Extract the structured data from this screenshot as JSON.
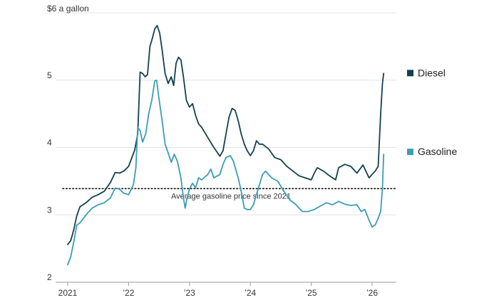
{
  "chart_data": {
    "type": "line",
    "title": "",
    "xlabel": "",
    "ylabel": "",
    "ylim": [
      2,
      6
    ],
    "xlim": [
      2021.0,
      2026.3
    ],
    "y_ticks": [
      {
        "value": 6,
        "label": "$6 a gallon"
      },
      {
        "value": 5,
        "label": "5"
      },
      {
        "value": 4,
        "label": "4"
      },
      {
        "value": 3,
        "label": "3"
      },
      {
        "value": 2,
        "label": "2"
      }
    ],
    "x_ticks": [
      {
        "value": 2021,
        "label": "2021"
      },
      {
        "value": 2022,
        "label": "’22"
      },
      {
        "value": 2023,
        "label": "’23"
      },
      {
        "value": 2024,
        "label": "’24"
      },
      {
        "value": 2025,
        "label": "’25"
      },
      {
        "value": 2026,
        "label": "’26"
      }
    ],
    "reference_line": {
      "value": 3.39,
      "label": "Average gasoline price since 2021"
    },
    "series": [
      {
        "name": "Diesel",
        "color": "#12404f",
        "points": [
          [
            2021.0,
            2.56
          ],
          [
            2021.05,
            2.62
          ],
          [
            2021.1,
            2.78
          ],
          [
            2021.15,
            2.99
          ],
          [
            2021.2,
            3.12
          ],
          [
            2021.3,
            3.18
          ],
          [
            2021.4,
            3.26
          ],
          [
            2021.5,
            3.3
          ],
          [
            2021.6,
            3.35
          ],
          [
            2021.7,
            3.48
          ],
          [
            2021.78,
            3.63
          ],
          [
            2021.85,
            3.62
          ],
          [
            2021.92,
            3.65
          ],
          [
            2022.0,
            3.72
          ],
          [
            2022.1,
            3.96
          ],
          [
            2022.15,
            4.2
          ],
          [
            2022.19,
            5.12
          ],
          [
            2022.23,
            5.1
          ],
          [
            2022.27,
            5.05
          ],
          [
            2022.31,
            5.08
          ],
          [
            2022.35,
            5.5
          ],
          [
            2022.39,
            5.62
          ],
          [
            2022.43,
            5.76
          ],
          [
            2022.47,
            5.81
          ],
          [
            2022.51,
            5.7
          ],
          [
            2022.55,
            5.45
          ],
          [
            2022.6,
            5.1
          ],
          [
            2022.65,
            4.95
          ],
          [
            2022.7,
            5.05
          ],
          [
            2022.74,
            4.92
          ],
          [
            2022.78,
            5.25
          ],
          [
            2022.82,
            5.34
          ],
          [
            2022.86,
            5.3
          ],
          [
            2022.9,
            5.05
          ],
          [
            2022.95,
            4.7
          ],
          [
            2023.0,
            4.6
          ],
          [
            2023.05,
            4.65
          ],
          [
            2023.1,
            4.48
          ],
          [
            2023.15,
            4.35
          ],
          [
            2023.2,
            4.3
          ],
          [
            2023.3,
            4.15
          ],
          [
            2023.4,
            4.0
          ],
          [
            2023.5,
            3.87
          ],
          [
            2023.55,
            3.95
          ],
          [
            2023.6,
            4.2
          ],
          [
            2023.65,
            4.45
          ],
          [
            2023.7,
            4.58
          ],
          [
            2023.75,
            4.55
          ],
          [
            2023.8,
            4.4
          ],
          [
            2023.85,
            4.2
          ],
          [
            2023.9,
            4.05
          ],
          [
            2023.95,
            3.95
          ],
          [
            2024.0,
            3.88
          ],
          [
            2024.05,
            3.95
          ],
          [
            2024.1,
            4.1
          ],
          [
            2024.15,
            4.05
          ],
          [
            2024.2,
            4.05
          ],
          [
            2024.3,
            3.98
          ],
          [
            2024.4,
            3.85
          ],
          [
            2024.5,
            3.82
          ],
          [
            2024.6,
            3.72
          ],
          [
            2024.7,
            3.65
          ],
          [
            2024.8,
            3.58
          ],
          [
            2024.9,
            3.55
          ],
          [
            2025.0,
            3.52
          ],
          [
            2025.05,
            3.62
          ],
          [
            2025.1,
            3.7
          ],
          [
            2025.2,
            3.65
          ],
          [
            2025.3,
            3.58
          ],
          [
            2025.4,
            3.52
          ],
          [
            2025.45,
            3.7
          ],
          [
            2025.55,
            3.75
          ],
          [
            2025.65,
            3.72
          ],
          [
            2025.75,
            3.62
          ],
          [
            2025.85,
            3.74
          ],
          [
            2025.95,
            3.55
          ],
          [
            2026.05,
            3.65
          ],
          [
            2026.1,
            3.72
          ],
          [
            2026.14,
            4.5
          ],
          [
            2026.17,
            4.95
          ],
          [
            2026.19,
            5.1
          ]
        ]
      },
      {
        "name": "Gasoline",
        "color": "#3a9db5",
        "points": [
          [
            2021.0,
            2.26
          ],
          [
            2021.05,
            2.38
          ],
          [
            2021.1,
            2.6
          ],
          [
            2021.15,
            2.85
          ],
          [
            2021.2,
            2.88
          ],
          [
            2021.3,
            3.0
          ],
          [
            2021.4,
            3.1
          ],
          [
            2021.5,
            3.15
          ],
          [
            2021.6,
            3.18
          ],
          [
            2021.7,
            3.25
          ],
          [
            2021.78,
            3.4
          ],
          [
            2021.85,
            3.38
          ],
          [
            2021.92,
            3.32
          ],
          [
            2022.0,
            3.3
          ],
          [
            2022.08,
            3.45
          ],
          [
            2022.12,
            3.7
          ],
          [
            2022.15,
            4.3
          ],
          [
            2022.19,
            4.25
          ],
          [
            2022.23,
            4.08
          ],
          [
            2022.28,
            4.2
          ],
          [
            2022.33,
            4.5
          ],
          [
            2022.38,
            4.7
          ],
          [
            2022.43,
            4.99
          ],
          [
            2022.46,
            5.0
          ],
          [
            2022.5,
            4.72
          ],
          [
            2022.55,
            4.4
          ],
          [
            2022.6,
            4.05
          ],
          [
            2022.65,
            3.92
          ],
          [
            2022.7,
            3.78
          ],
          [
            2022.75,
            3.9
          ],
          [
            2022.8,
            3.8
          ],
          [
            2022.86,
            3.55
          ],
          [
            2022.9,
            3.25
          ],
          [
            2022.93,
            3.1
          ],
          [
            2022.96,
            3.25
          ],
          [
            2023.0,
            3.38
          ],
          [
            2023.05,
            3.47
          ],
          [
            2023.1,
            3.4
          ],
          [
            2023.15,
            3.55
          ],
          [
            2023.2,
            3.52
          ],
          [
            2023.3,
            3.6
          ],
          [
            2023.35,
            3.68
          ],
          [
            2023.4,
            3.55
          ],
          [
            2023.5,
            3.6
          ],
          [
            2023.55,
            3.75
          ],
          [
            2023.6,
            3.85
          ],
          [
            2023.67,
            3.88
          ],
          [
            2023.72,
            3.8
          ],
          [
            2023.8,
            3.55
          ],
          [
            2023.85,
            3.35
          ],
          [
            2023.9,
            3.1
          ],
          [
            2023.95,
            3.08
          ],
          [
            2024.0,
            3.08
          ],
          [
            2024.05,
            3.15
          ],
          [
            2024.1,
            3.3
          ],
          [
            2024.15,
            3.45
          ],
          [
            2024.2,
            3.6
          ],
          [
            2024.25,
            3.65
          ],
          [
            2024.3,
            3.6
          ],
          [
            2024.35,
            3.55
          ],
          [
            2024.45,
            3.5
          ],
          [
            2024.55,
            3.35
          ],
          [
            2024.65,
            3.22
          ],
          [
            2024.75,
            3.15
          ],
          [
            2024.85,
            3.05
          ],
          [
            2024.95,
            3.05
          ],
          [
            2025.05,
            3.08
          ],
          [
            2025.15,
            3.13
          ],
          [
            2025.25,
            3.18
          ],
          [
            2025.35,
            3.15
          ],
          [
            2025.45,
            3.2
          ],
          [
            2025.55,
            3.16
          ],
          [
            2025.65,
            3.14
          ],
          [
            2025.75,
            3.15
          ],
          [
            2025.82,
            3.05
          ],
          [
            2025.88,
            3.08
          ],
          [
            2025.95,
            2.92
          ],
          [
            2026.0,
            2.82
          ],
          [
            2026.05,
            2.85
          ],
          [
            2026.1,
            2.95
          ],
          [
            2026.14,
            3.05
          ],
          [
            2026.17,
            3.4
          ],
          [
            2026.19,
            3.9
          ]
        ]
      }
    ],
    "legend": [
      {
        "label": "Diesel",
        "color": "#12404f"
      },
      {
        "label": "Gasoline",
        "color": "#3a9db5"
      }
    ]
  }
}
